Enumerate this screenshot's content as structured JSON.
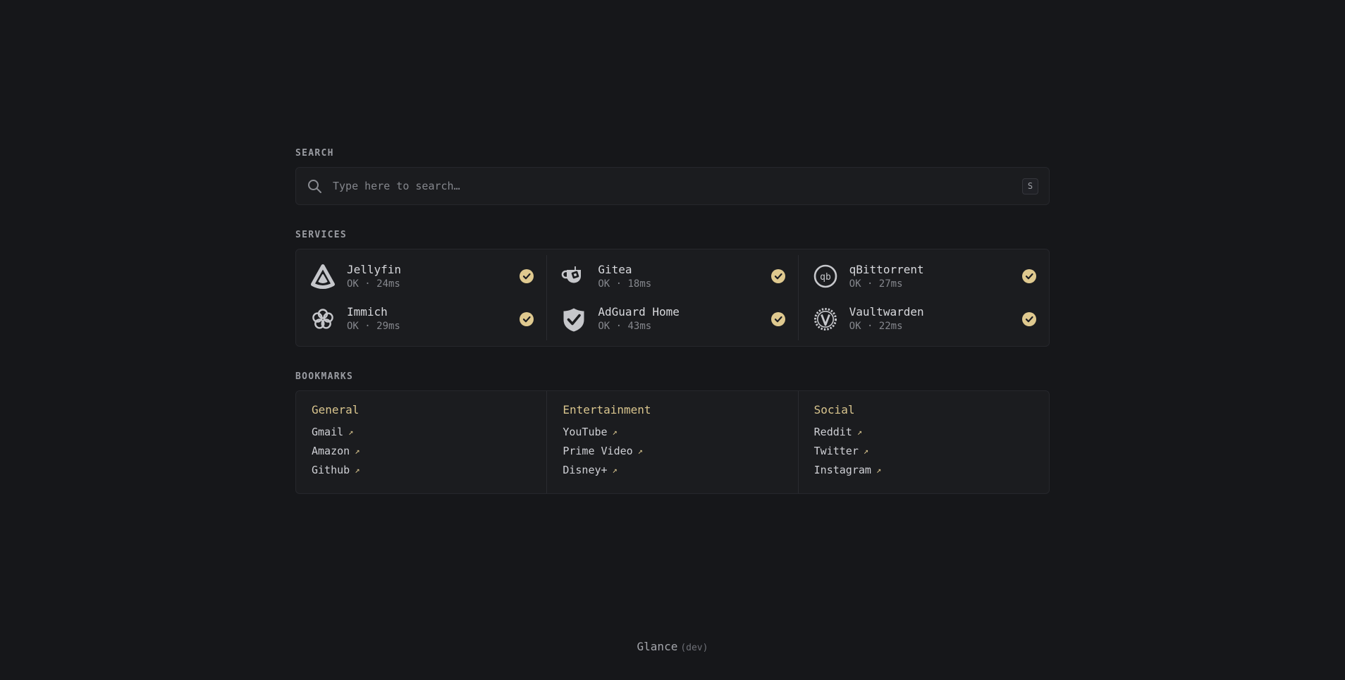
{
  "search": {
    "section_label": "SEARCH",
    "placeholder": "Type here to search…",
    "shortcut_key": "S"
  },
  "services": {
    "section_label": "SERVICES",
    "items": [
      {
        "name": "Jellyfin",
        "status": "OK · 24ms",
        "icon": "jellyfin-icon",
        "status_ok": true
      },
      {
        "name": "Gitea",
        "status": "OK · 18ms",
        "icon": "gitea-icon",
        "status_ok": true
      },
      {
        "name": "qBittorrent",
        "status": "OK · 27ms",
        "icon": "qbittorrent-icon",
        "status_ok": true
      },
      {
        "name": "Immich",
        "status": "OK · 29ms",
        "icon": "immich-icon",
        "status_ok": true
      },
      {
        "name": "AdGuard Home",
        "status": "OK · 43ms",
        "icon": "adguard-icon",
        "status_ok": true
      },
      {
        "name": "Vaultwarden",
        "status": "OK · 22ms",
        "icon": "vaultwarden-icon",
        "status_ok": true
      }
    ]
  },
  "bookmarks": {
    "section_label": "BOOKMARKS",
    "external_link_glyph": "↗",
    "groups": [
      {
        "title": "General",
        "links": [
          "Gmail",
          "Amazon",
          "Github"
        ]
      },
      {
        "title": "Entertainment",
        "links": [
          "YouTube",
          "Prime Video",
          "Disney+"
        ]
      },
      {
        "title": "Social",
        "links": [
          "Reddit",
          "Twitter",
          "Instagram"
        ]
      }
    ]
  },
  "footer": {
    "app_name": "Glance",
    "version": "(dev)"
  },
  "colors": {
    "background": "#16171a",
    "card_background": "#1b1c1f",
    "card_border": "#26272c",
    "divider": "#2a2b30",
    "primary_gold": "#d9c58e",
    "badge_gold": "#dfc98f",
    "text_primary": "#d8d9dd",
    "text_subdued": "#85878d",
    "section_label": "#9a9ca2"
  }
}
